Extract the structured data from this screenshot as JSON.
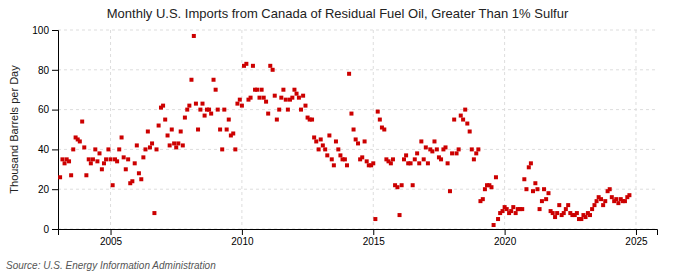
{
  "chart_data": {
    "type": "scatter",
    "title": "Monthly U.S. Imports from Canada of Residual Fuel Oil, Greater Than 1% Sulfur",
    "y_label": "Thousand Barrels per Day",
    "source": "Source: U.S. Energy Information Administration",
    "color": "#cc0000",
    "marker": "square",
    "grid": true,
    "xlim": [
      2003.0,
      2025.8
    ],
    "xticks": [
      2005,
      2010,
      2015,
      2020,
      2025
    ],
    "ylim": [
      0,
      100
    ],
    "yticks": [
      0,
      20,
      40,
      60,
      80,
      100
    ],
    "x": [
      2003.08,
      2003.17,
      2003.25,
      2003.33,
      2003.42,
      2003.5,
      2003.58,
      2003.67,
      2003.75,
      2003.83,
      2003.92,
      2004.0,
      2004.08,
      2004.17,
      2004.25,
      2004.33,
      2004.42,
      2004.5,
      2004.58,
      2004.67,
      2004.75,
      2004.83,
      2004.92,
      2005.0,
      2005.08,
      2005.17,
      2005.25,
      2005.33,
      2005.42,
      2005.5,
      2005.58,
      2005.67,
      2005.75,
      2005.83,
      2005.92,
      2006.0,
      2006.08,
      2006.17,
      2006.25,
      2006.33,
      2006.42,
      2006.5,
      2006.58,
      2006.67,
      2006.75,
      2006.83,
      2006.92,
      2007.0,
      2007.08,
      2007.17,
      2007.25,
      2007.33,
      2007.42,
      2007.5,
      2007.58,
      2007.67,
      2007.75,
      2007.83,
      2007.92,
      2008.0,
      2008.08,
      2008.17,
      2008.25,
      2008.33,
      2008.42,
      2008.5,
      2008.58,
      2008.67,
      2008.75,
      2008.83,
      2008.92,
      2009.0,
      2009.08,
      2009.17,
      2009.25,
      2009.33,
      2009.42,
      2009.5,
      2009.58,
      2009.67,
      2009.75,
      2009.83,
      2009.92,
      2010.0,
      2010.08,
      2010.17,
      2010.25,
      2010.33,
      2010.42,
      2010.5,
      2010.58,
      2010.67,
      2010.75,
      2010.83,
      2010.92,
      2011.0,
      2011.08,
      2011.17,
      2011.25,
      2011.33,
      2011.42,
      2011.5,
      2011.58,
      2011.67,
      2011.75,
      2011.83,
      2011.92,
      2012.0,
      2012.08,
      2012.17,
      2012.25,
      2012.33,
      2012.42,
      2012.5,
      2012.58,
      2012.67,
      2012.75,
      2012.83,
      2012.92,
      2013.0,
      2013.08,
      2013.17,
      2013.25,
      2013.33,
      2013.42,
      2013.5,
      2013.58,
      2013.67,
      2013.75,
      2013.83,
      2013.92,
      2014.0,
      2014.08,
      2014.17,
      2014.25,
      2014.33,
      2014.42,
      2014.5,
      2014.58,
      2014.67,
      2014.75,
      2014.83,
      2014.92,
      2015.0,
      2015.08,
      2015.17,
      2015.25,
      2015.33,
      2015.42,
      2015.5,
      2015.58,
      2015.67,
      2015.75,
      2015.83,
      2015.92,
      2016.0,
      2016.08,
      2016.17,
      2016.25,
      2016.33,
      2016.42,
      2016.5,
      2016.58,
      2016.67,
      2016.75,
      2016.83,
      2016.92,
      2017.0,
      2017.08,
      2017.17,
      2017.25,
      2017.33,
      2017.42,
      2017.5,
      2017.58,
      2017.67,
      2017.75,
      2017.83,
      2017.92,
      2018.0,
      2018.08,
      2018.17,
      2018.25,
      2018.33,
      2018.42,
      2018.5,
      2018.58,
      2018.67,
      2018.75,
      2018.83,
      2018.92,
      2019.0,
      2019.08,
      2019.17,
      2019.25,
      2019.33,
      2019.42,
      2019.5,
      2019.58,
      2019.67,
      2019.75,
      2019.83,
      2019.92,
      2020.0,
      2020.08,
      2020.17,
      2020.25,
      2020.33,
      2020.42,
      2020.5,
      2020.58,
      2020.67,
      2020.75,
      2020.83,
      2020.92,
      2021.0,
      2021.08,
      2021.17,
      2021.25,
      2021.33,
      2021.42,
      2021.5,
      2021.58,
      2021.67,
      2021.75,
      2021.83,
      2021.92,
      2022.0,
      2022.08,
      2022.17,
      2022.25,
      2022.33,
      2022.42,
      2022.5,
      2022.58,
      2022.67,
      2022.75,
      2022.83,
      2022.92,
      2023.0,
      2023.08,
      2023.17,
      2023.25,
      2023.33,
      2023.42,
      2023.5,
      2023.58,
      2023.67,
      2023.75,
      2023.83,
      2023.92,
      2024.0,
      2024.08,
      2024.17,
      2024.25,
      2024.33,
      2024.42,
      2024.5,
      2024.58,
      2024.67,
      2024.75
    ],
    "values": [
      26,
      35,
      33,
      35,
      34,
      27,
      40,
      46,
      45,
      44,
      54,
      41,
      27,
      35,
      33,
      35,
      40,
      34,
      38,
      30,
      33,
      35,
      40,
      35,
      22,
      35,
      34,
      40,
      46,
      36,
      30,
      35,
      23,
      24,
      33,
      42,
      28,
      25,
      36,
      40,
      49,
      41,
      43,
      8,
      40,
      52,
      61,
      62,
      55,
      47,
      42,
      50,
      43,
      41,
      43,
      49,
      42,
      56,
      60,
      62,
      75,
      97,
      63,
      50,
      60,
      63,
      57,
      60,
      60,
      58,
      75,
      70,
      60,
      50,
      40,
      60,
      50,
      55,
      47,
      48,
      40,
      63,
      65,
      62,
      82,
      83,
      65,
      66,
      82,
      70,
      70,
      66,
      70,
      66,
      64,
      58,
      82,
      80,
      67,
      55,
      60,
      66,
      70,
      65,
      60,
      65,
      66,
      70,
      68,
      66,
      60,
      67,
      62,
      56,
      55,
      55,
      46,
      44,
      40,
      45,
      42,
      40,
      37,
      47,
      35,
      32,
      44,
      40,
      37,
      35,
      35,
      32,
      78,
      58,
      50,
      45,
      43,
      35,
      36,
      44,
      34,
      32,
      32,
      33,
      5,
      59,
      55,
      51,
      50,
      35,
      34,
      33,
      35,
      22,
      21,
      7,
      22,
      35,
      37,
      33,
      33,
      22,
      35,
      38,
      33,
      44,
      35,
      41,
      33,
      40,
      39,
      44,
      40,
      36,
      35,
      40,
      41,
      33,
      19,
      38,
      55,
      38,
      40,
      57,
      55,
      60,
      53,
      49,
      40,
      35,
      38,
      40,
      14,
      15,
      20,
      22,
      22,
      21,
      2,
      26,
      5,
      8,
      9,
      11,
      10,
      8,
      9,
      11,
      8,
      10,
      10,
      10,
      25,
      20,
      31,
      33,
      19,
      23,
      20,
      10,
      14,
      20,
      15,
      18,
      9,
      8,
      6,
      8,
      12,
      7,
      8,
      10,
      12,
      8,
      7,
      7,
      8,
      5,
      5,
      7,
      6,
      8,
      7,
      10,
      12,
      14,
      16,
      15,
      12,
      14,
      19,
      20,
      16,
      14,
      15,
      13,
      15,
      14,
      14,
      16,
      17
    ]
  }
}
